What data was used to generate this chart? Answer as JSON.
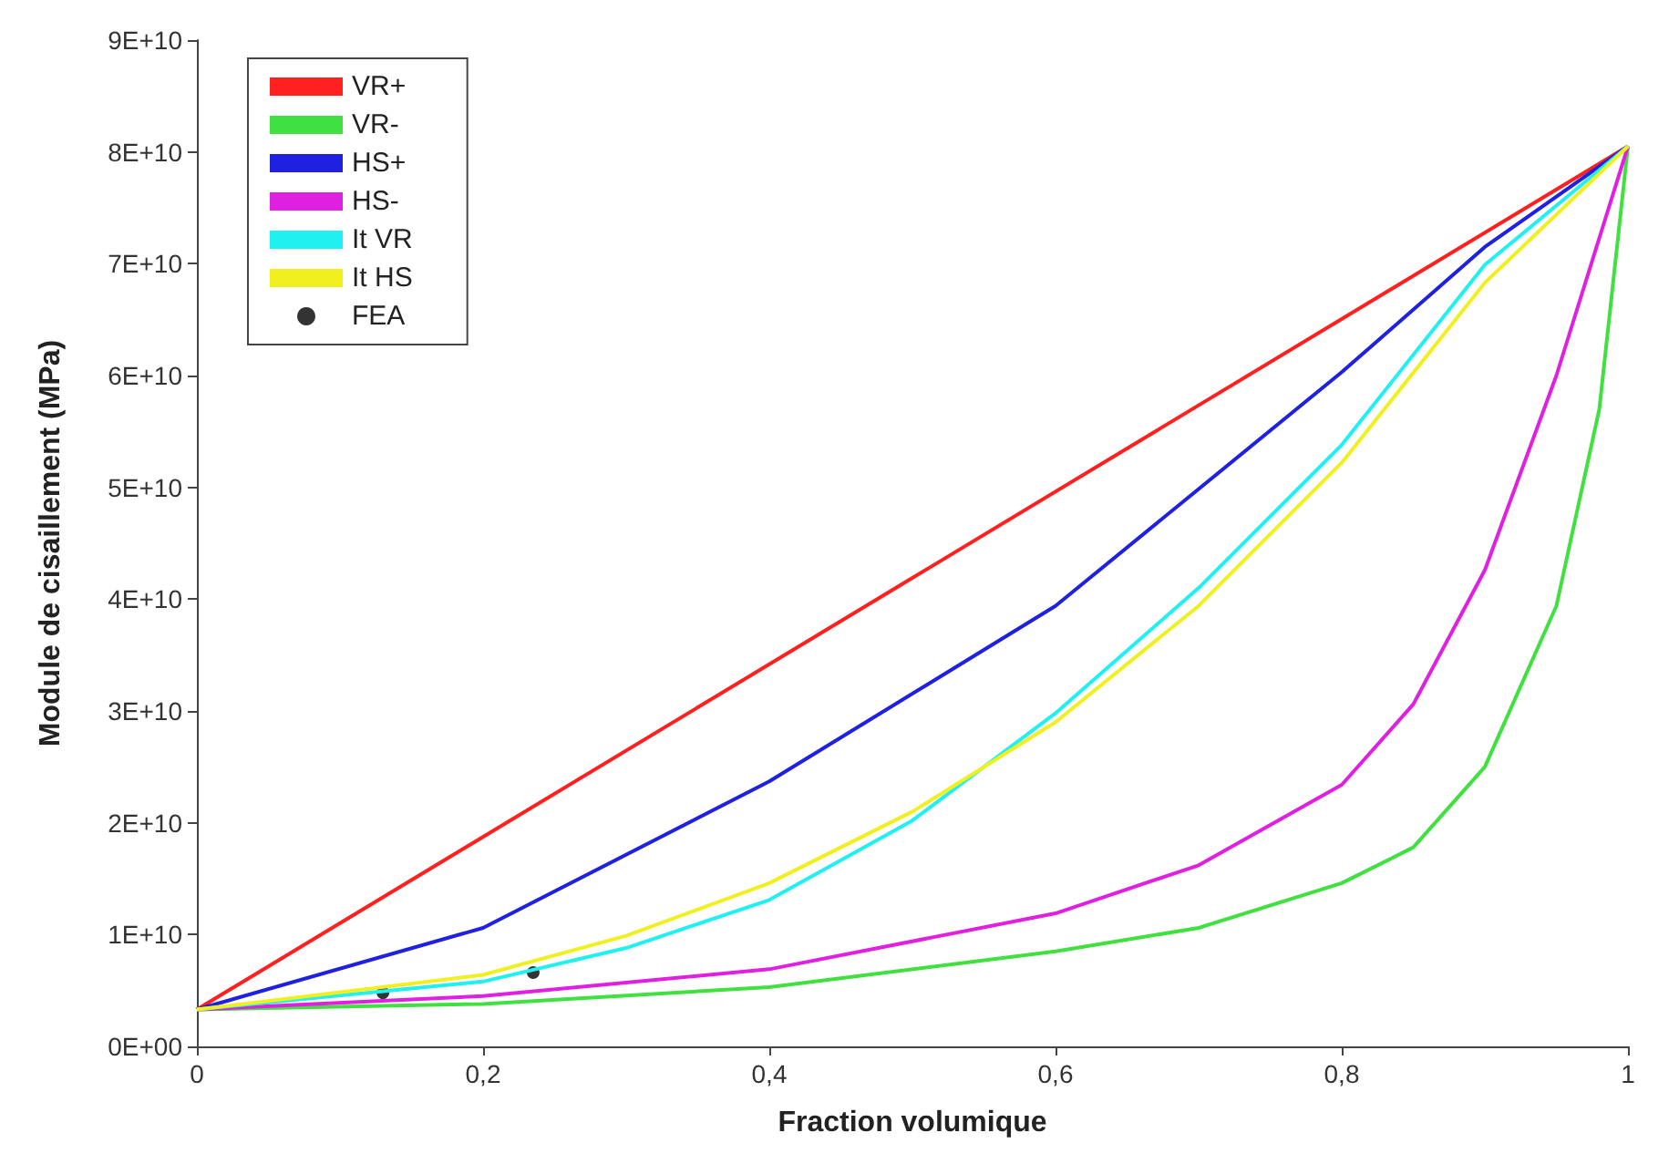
{
  "chart_data": {
    "type": "line",
    "xlabel": "Fraction volumique",
    "ylabel": "Module de cisaillement (MPa)",
    "xlim": [
      0,
      1
    ],
    "ylim": [
      0,
      90000000000
    ],
    "xticks": [
      0,
      {
        "value": 0.2,
        "label": "0,2"
      },
      {
        "value": 0.4,
        "label": "0,4"
      },
      {
        "value": 0.6,
        "label": "0,6"
      },
      {
        "value": 0.8,
        "label": "0,8"
      },
      1
    ],
    "yticks": [
      {
        "value": 0,
        "label": "0E+00"
      },
      {
        "value": 10000000000,
        "label": "1E+10"
      },
      {
        "value": 20000000000,
        "label": "2E+10"
      },
      {
        "value": 30000000000,
        "label": "3E+10"
      },
      {
        "value": 40000000000,
        "label": "4E+10"
      },
      {
        "value": 50000000000,
        "label": "5E+10"
      },
      {
        "value": 60000000000,
        "label": "6E+10"
      },
      {
        "value": 70000000000,
        "label": "7E+10"
      },
      {
        "value": 80000000000,
        "label": "8E+10"
      },
      {
        "value": 90000000000,
        "label": "9E+10"
      }
    ],
    "grid": false,
    "legend": "top left",
    "marker": "none",
    "series": [
      {
        "name": "VR+",
        "color": "#ff2020",
        "x": [
          0,
          0.5,
          1
        ],
        "values": [
          3300000000,
          41900000000,
          80500000000
        ]
      },
      {
        "name": "VR-",
        "color": "#40e040",
        "x": [
          0,
          0.2,
          0.4,
          0.6,
          0.7,
          0.8,
          0.85,
          0.9,
          0.95,
          0.98,
          1
        ],
        "values": [
          3300000000,
          3800000000,
          5300000000,
          8500000000,
          10600000000,
          14600000000,
          17800000000,
          25000000000,
          39400000000,
          57000000000,
          80500000000
        ]
      },
      {
        "name": "HS+",
        "color": "#2020e0",
        "x": [
          0,
          0.2,
          0.4,
          0.6,
          0.8,
          0.9,
          1
        ],
        "values": [
          3300000000,
          10600000000,
          23700000000,
          39400000000,
          60300000000,
          71500000000,
          80500000000
        ]
      },
      {
        "name": "HS-",
        "color": "#e020e0",
        "x": [
          0,
          0.2,
          0.4,
          0.6,
          0.7,
          0.8,
          0.85,
          0.9,
          0.95,
          1
        ],
        "values": [
          3300000000,
          4500000000,
          6900000000,
          11900000000,
          16200000000,
          23400000000,
          30600000000,
          42600000000,
          60000000000,
          80500000000
        ]
      },
      {
        "name": "It VR",
        "color": "#20f0f0",
        "x": [
          0,
          0.2,
          0.3,
          0.4,
          0.5,
          0.6,
          0.7,
          0.8,
          0.9,
          1
        ],
        "values": [
          3300000000,
          5800000000,
          8800000000,
          13100000000,
          20200000000,
          29800000000,
          41000000000,
          53800000000,
          69900000000,
          80500000000
        ]
      },
      {
        "name": "It HS",
        "color": "#f0f020",
        "x": [
          0,
          0.2,
          0.3,
          0.4,
          0.5,
          0.6,
          0.7,
          0.8,
          0.9,
          1
        ],
        "values": [
          3300000000,
          6400000000,
          9900000000,
          14600000000,
          21000000000,
          29000000000,
          39400000000,
          52200000000,
          68300000000,
          80500000000
        ]
      },
      {
        "name": "FEA",
        "type": "scatter",
        "marker": "circle",
        "color": "#000000",
        "x": [
          0.13,
          0.235
        ],
        "values": [
          4800000000,
          6600000000
        ]
      }
    ]
  }
}
